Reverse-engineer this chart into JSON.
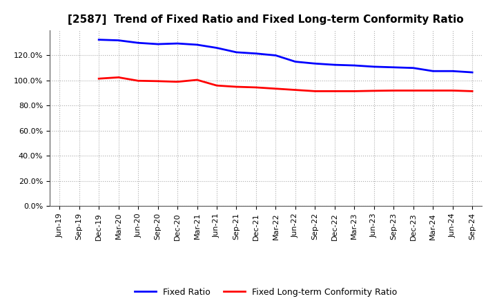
{
  "title": "[2587]  Trend of Fixed Ratio and Fixed Long-term Conformity Ratio",
  "x_labels": [
    "Jun-19",
    "Sep-19",
    "Dec-19",
    "Mar-20",
    "Jun-20",
    "Sep-20",
    "Dec-20",
    "Mar-21",
    "Jun-21",
    "Sep-21",
    "Dec-21",
    "Mar-22",
    "Jun-22",
    "Sep-22",
    "Dec-22",
    "Mar-23",
    "Jun-23",
    "Sep-23",
    "Dec-23",
    "Mar-24",
    "Jun-24",
    "Sep-24"
  ],
  "fixed_ratio": [
    null,
    null,
    132.5,
    132.0,
    130.0,
    129.0,
    129.5,
    128.5,
    126.0,
    122.5,
    121.5,
    120.0,
    115.0,
    113.5,
    112.5,
    112.0,
    111.0,
    110.5,
    110.0,
    107.5,
    107.5,
    106.5
  ],
  "fixed_lt_ratio": [
    null,
    null,
    101.5,
    102.5,
    99.8,
    99.5,
    99.0,
    100.5,
    96.0,
    95.0,
    94.5,
    93.5,
    92.5,
    91.5,
    91.5,
    91.5,
    91.8,
    92.0,
    92.0,
    92.0,
    92.0,
    91.5
  ],
  "fixed_ratio_color": "#0000FF",
  "fixed_lt_ratio_color": "#FF0000",
  "ylim": [
    0,
    140
  ],
  "yticks": [
    0,
    20,
    40,
    60,
    80,
    100,
    120
  ],
  "background_color": "#FFFFFF",
  "grid_color": "#AAAAAA",
  "title_fontsize": 11,
  "tick_fontsize": 8,
  "legend_fontsize": 9
}
